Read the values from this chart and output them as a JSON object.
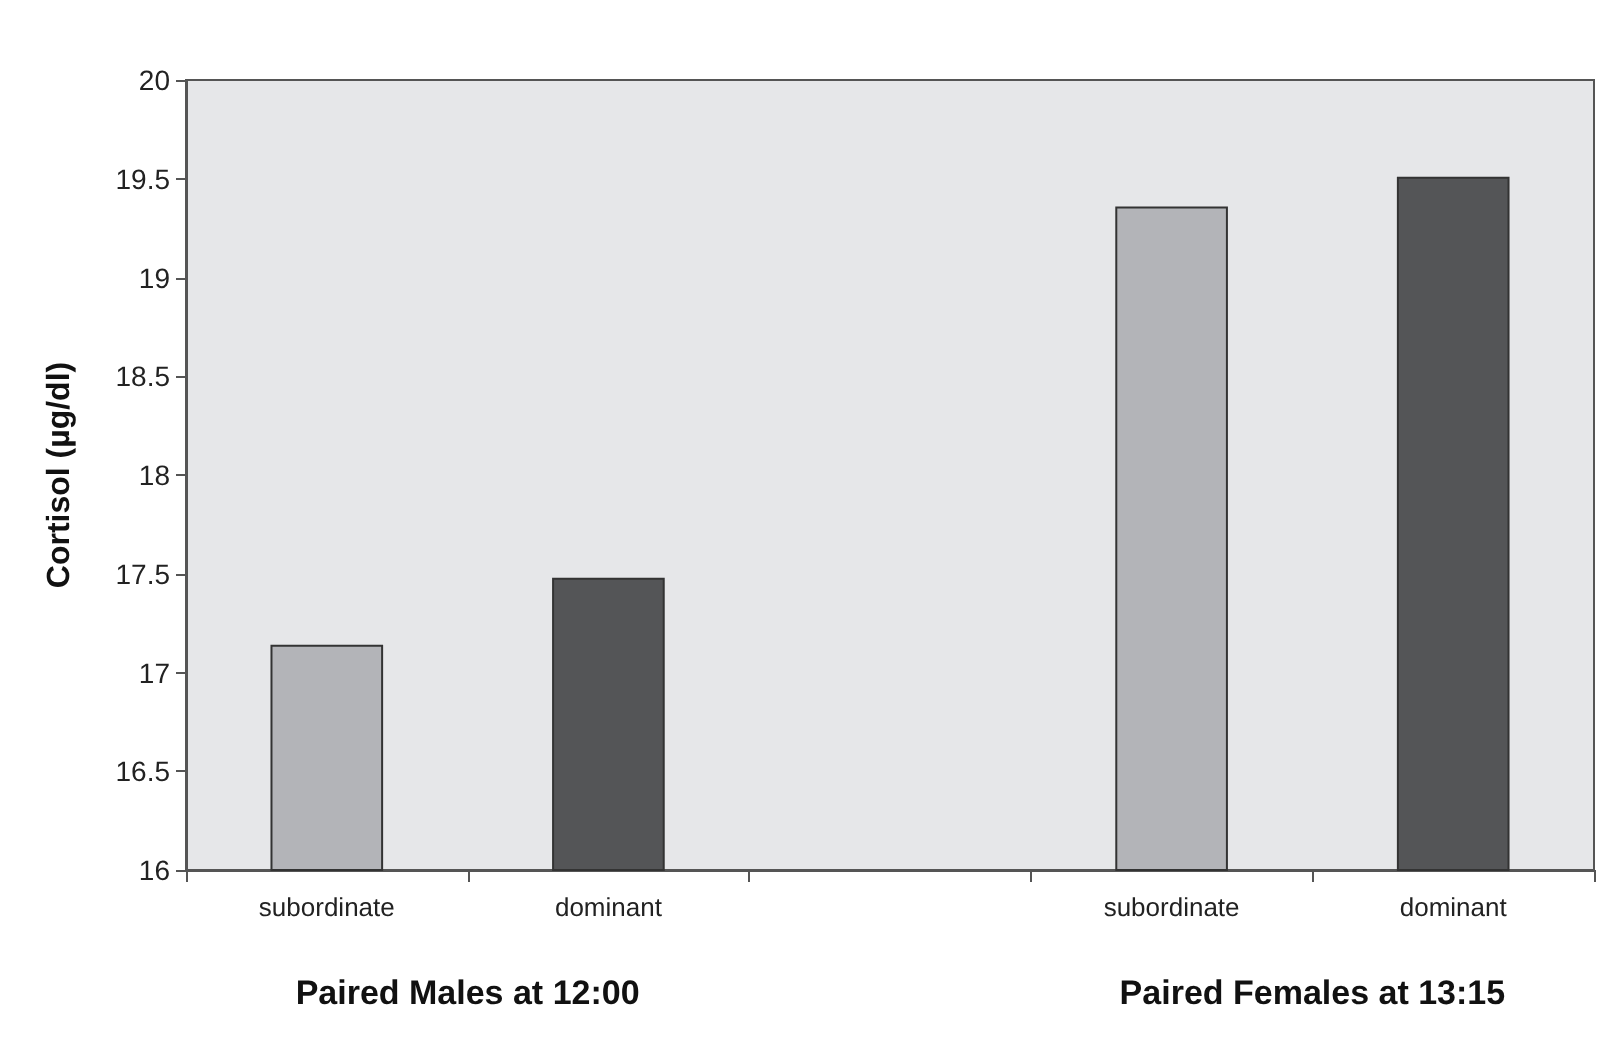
{
  "chart_data": {
    "type": "bar",
    "ylabel": "Cortisol (µg/dl)",
    "categories": [
      "subordinate",
      "dominant",
      null,
      "subordinate",
      "dominant"
    ],
    "values": [
      17.14,
      17.48,
      null,
      19.36,
      19.51
    ],
    "colors": [
      "#b3b4b8",
      "#545557",
      null,
      "#b3b4b8",
      "#545557"
    ],
    "ylim": [
      16,
      20
    ],
    "yticks": [
      16,
      16.5,
      17,
      17.5,
      18,
      18.5,
      19,
      19.5,
      20
    ],
    "grid": false,
    "annotations": [
      "Paired Males at 12:00",
      "Paired Females at 13:15"
    ]
  }
}
